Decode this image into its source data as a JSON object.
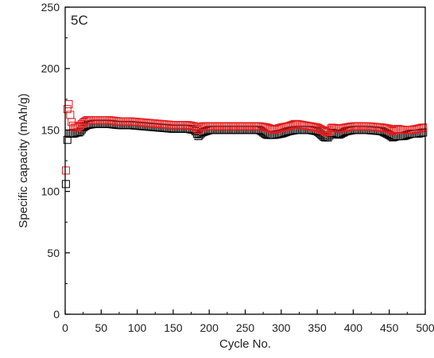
{
  "chart_data": {
    "type": "scatter",
    "title": "",
    "annotation": "5C",
    "xlabel": "Cycle No.",
    "ylabel": "Specific capacity (mAh/g)",
    "xlim": [
      0,
      500
    ],
    "ylim": [
      0,
      250
    ],
    "x_ticks": [
      0,
      50,
      100,
      150,
      200,
      250,
      300,
      350,
      400,
      450,
      500
    ],
    "y_ticks": [
      0,
      50,
      100,
      150,
      200,
      250
    ],
    "grid": false,
    "legend": "none",
    "series": [
      {
        "color": "#000000",
        "marker": "open-square",
        "x": [
          1,
          3,
          5,
          8,
          12,
          16,
          20,
          25,
          30,
          40,
          50,
          60,
          75,
          90,
          110,
          130,
          150,
          170,
          180,
          185,
          190,
          200,
          220,
          240,
          260,
          270,
          280,
          290,
          300,
          310,
          320,
          330,
          340,
          350,
          360,
          365,
          370,
          380,
          390,
          400,
          420,
          440,
          450,
          455,
          460,
          470,
          480,
          490,
          497
        ],
        "values": [
          106,
          142,
          147,
          147,
          147,
          148,
          148,
          152,
          154,
          155,
          155,
          155,
          154,
          154,
          153,
          152,
          151,
          151,
          150,
          145,
          148,
          150,
          150,
          150,
          150,
          150,
          146,
          146,
          147,
          149,
          150,
          150,
          150,
          149,
          144,
          144,
          148,
          146,
          149,
          150,
          150,
          149,
          146,
          144,
          145,
          145,
          147,
          147,
          148
        ]
      },
      {
        "color": "#e41a1c",
        "marker": "open-square",
        "x": [
          1,
          3,
          5,
          8,
          12,
          16,
          20,
          25,
          30,
          40,
          50,
          60,
          75,
          90,
          110,
          130,
          150,
          170,
          180,
          185,
          190,
          200,
          220,
          240,
          260,
          270,
          280,
          290,
          300,
          310,
          320,
          330,
          340,
          350,
          360,
          365,
          370,
          380,
          390,
          400,
          420,
          440,
          450,
          455,
          460,
          470,
          480,
          490,
          497
        ],
        "values": [
          117,
          167,
          171,
          158,
          152,
          152,
          153,
          156,
          158,
          158,
          158,
          158,
          157,
          157,
          156,
          155,
          154,
          154,
          153,
          150,
          153,
          153,
          153,
          153,
          153,
          153,
          152,
          150,
          152,
          153,
          155,
          154,
          153,
          152,
          149,
          148,
          152,
          151,
          152,
          153,
          153,
          152,
          151,
          149,
          151,
          150,
          150,
          151,
          152
        ]
      }
    ]
  }
}
